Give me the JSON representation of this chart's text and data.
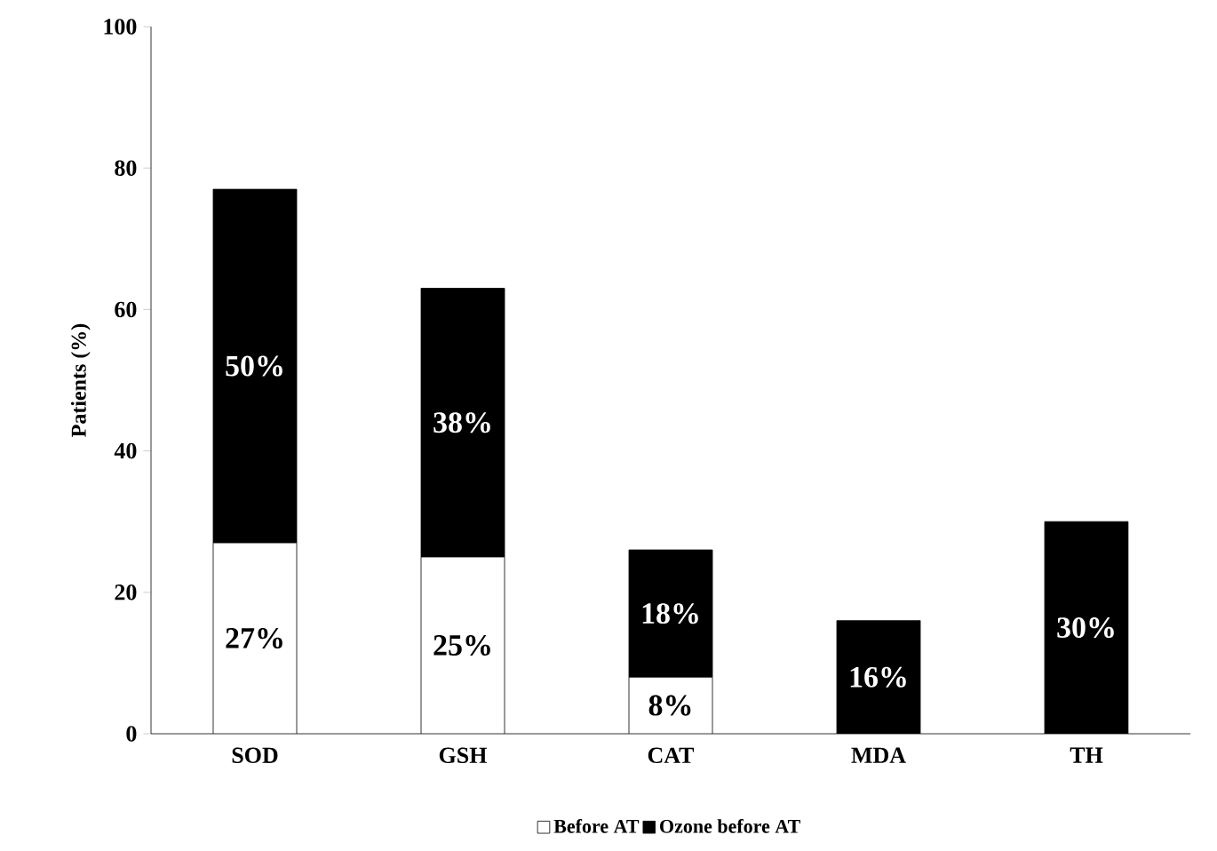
{
  "chart_data": {
    "type": "bar",
    "stacked": true,
    "ylabel": "Patients (%)",
    "categories": [
      "SOD",
      "GSH",
      "CAT",
      "MDA",
      "TH"
    ],
    "series": [
      {
        "name": "Before AT",
        "color": "#ffffff",
        "values": [
          27,
          25,
          8,
          0,
          0
        ],
        "value_labels": [
          "27%",
          "25%",
          "8%",
          null,
          null
        ]
      },
      {
        "name": "Ozone before AT",
        "color": "#000000",
        "values": [
          50,
          38,
          18,
          16,
          30
        ],
        "value_labels": [
          "50%",
          "38%",
          "18%",
          "16%",
          "30%"
        ]
      }
    ],
    "ylim": [
      0,
      100
    ],
    "yticks": [
      0,
      20,
      40,
      60,
      80,
      100
    ],
    "legend": "bottom",
    "grid": false
  }
}
